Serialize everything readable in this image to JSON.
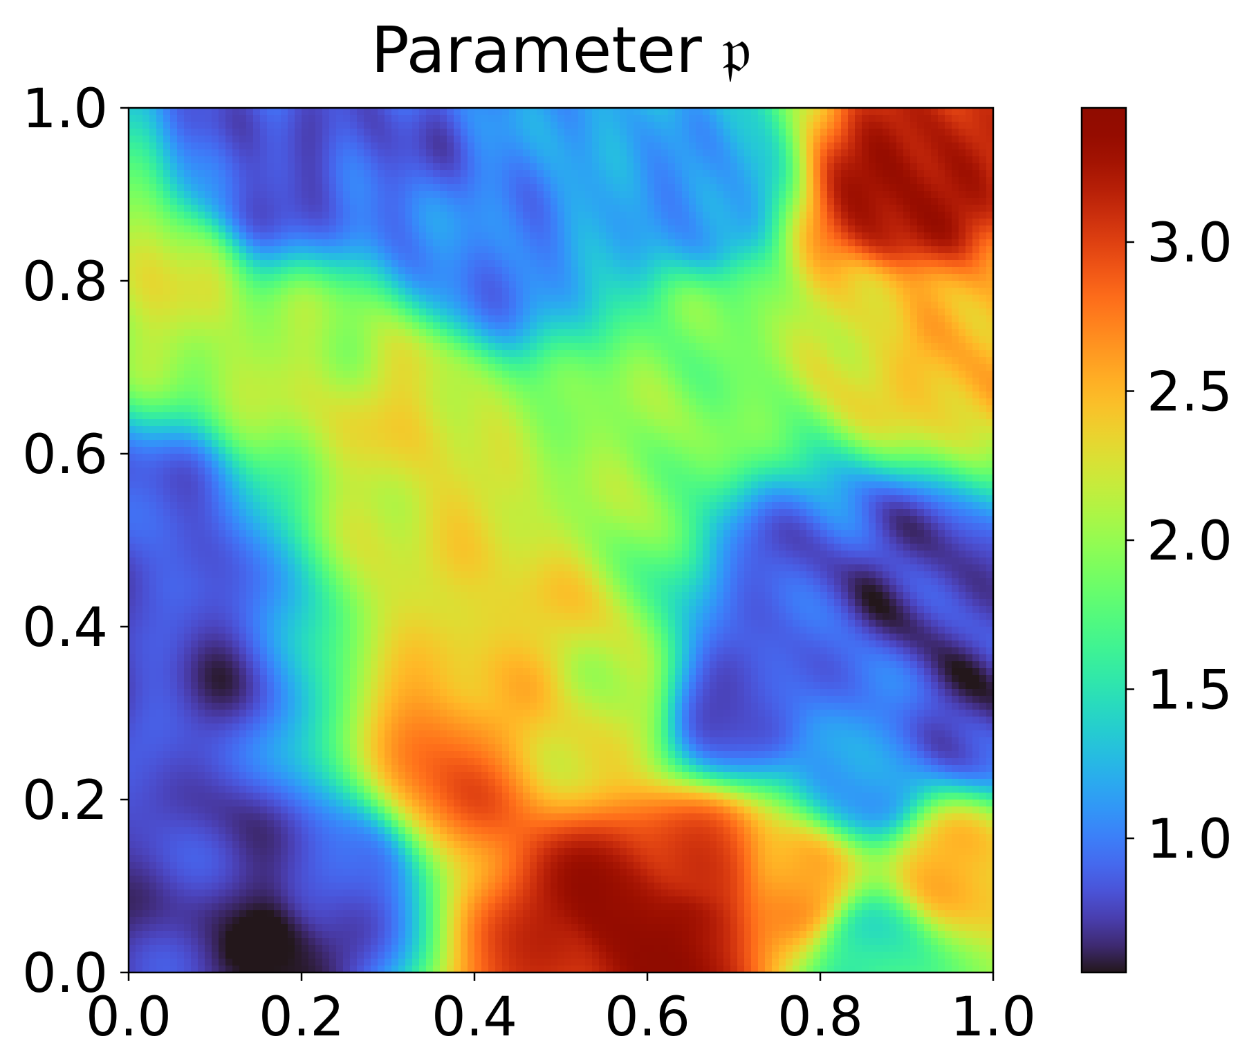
{
  "chart_data": {
    "type": "heatmap",
    "title": "Parameter 𝔭",
    "xlabel": "",
    "ylabel": "",
    "xlim": [
      0.0,
      1.0
    ],
    "ylim": [
      0.0,
      1.0
    ],
    "x_ticks": [
      "0.0",
      "0.2",
      "0.4",
      "0.6",
      "0.8",
      "1.0"
    ],
    "y_ticks": [
      "0.0",
      "0.2",
      "0.4",
      "0.6",
      "0.8",
      "1.0"
    ],
    "colormap": "turbo",
    "colorbar": {
      "range": [
        0.55,
        3.45
      ],
      "ticks": [
        1.0,
        1.5,
        2.0,
        2.5,
        3.0
      ],
      "tick_labels": [
        "1.0",
        "1.5",
        "2.0",
        "2.5",
        "3.0"
      ]
    },
    "field_features": [
      {
        "x": 0.56,
        "y": 0.07,
        "value": 3.4
      },
      {
        "x": 0.64,
        "y": 0.04,
        "value": 3.35
      },
      {
        "x": 0.5,
        "y": 0.02,
        "value": 3.1
      },
      {
        "x": 0.66,
        "y": 0.13,
        "value": 3.0
      },
      {
        "x": 0.38,
        "y": 0.23,
        "value": 2.8
      },
      {
        "x": 0.89,
        "y": 0.89,
        "value": 3.3
      },
      {
        "x": 0.95,
        "y": 0.72,
        "value": 2.5
      },
      {
        "x": 0.85,
        "y": 0.75,
        "value": 2.3
      },
      {
        "x": 0.78,
        "y": 0.1,
        "value": 2.6
      },
      {
        "x": 0.95,
        "y": 0.12,
        "value": 2.5
      },
      {
        "x": 0.45,
        "y": 0.38,
        "value": 2.4
      },
      {
        "x": 0.4,
        "y": 0.5,
        "value": 2.3
      },
      {
        "x": 0.32,
        "y": 0.65,
        "value": 2.3
      },
      {
        "x": 0.18,
        "y": 0.7,
        "value": 2.1
      },
      {
        "x": 0.04,
        "y": 0.8,
        "value": 2.2
      },
      {
        "x": 0.55,
        "y": 0.6,
        "value": 2.0
      },
      {
        "x": 0.7,
        "y": 0.72,
        "value": 1.9
      },
      {
        "x": 0.55,
        "y": 0.3,
        "value": 2.2
      },
      {
        "x": 0.16,
        "y": 0.02,
        "value": 0.55
      },
      {
        "x": 0.1,
        "y": 0.08,
        "value": 0.7
      },
      {
        "x": 0.24,
        "y": 0.1,
        "value": 0.8
      },
      {
        "x": 0.06,
        "y": 0.35,
        "value": 0.75
      },
      {
        "x": 0.04,
        "y": 0.52,
        "value": 0.85
      },
      {
        "x": 0.16,
        "y": 0.92,
        "value": 0.8
      },
      {
        "x": 0.28,
        "y": 0.97,
        "value": 0.85
      },
      {
        "x": 0.42,
        "y": 0.82,
        "value": 1.0
      },
      {
        "x": 0.9,
        "y": 0.45,
        "value": 0.7
      },
      {
        "x": 0.98,
        "y": 0.3,
        "value": 0.7
      },
      {
        "x": 0.7,
        "y": 0.3,
        "value": 0.75
      },
      {
        "x": 0.78,
        "y": 0.45,
        "value": 0.85
      },
      {
        "x": 0.66,
        "y": 0.9,
        "value": 1.1
      },
      {
        "x": 0.85,
        "y": 0.22,
        "value": 1.1
      },
      {
        "x": 0.86,
        "y": 0.03,
        "value": 1.5
      }
    ]
  }
}
